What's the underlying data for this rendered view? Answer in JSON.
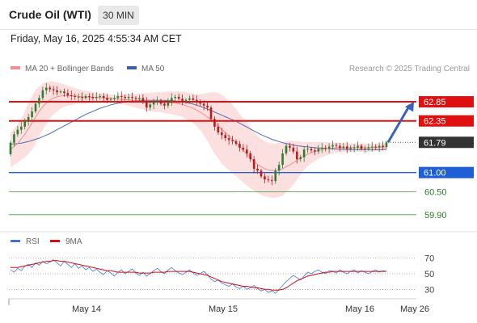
{
  "header": {
    "title": "Crude Oil (WTI)",
    "timeframe": "30 MIN"
  },
  "datetime": "Friday, May 16, 2025 4:55:34 AM CET",
  "legend": {
    "bollinger": "MA 20 + Bollinger Bands",
    "ma50": "MA 50",
    "credit": "Research © 2025 Trading Central"
  },
  "indicator_legend": {
    "rsi": "RSI",
    "ma9": "9MA"
  },
  "colors": {
    "bull": "#2e7d32",
    "bear": "#b71c1c",
    "bollinger_fill": "#fcd9d9",
    "ma20": "#f09090",
    "ma50": "#4a6fb5",
    "resistance": "#e01010",
    "support": "#1f5fd6",
    "target": "#3a63b8",
    "last_price": "#333333"
  },
  "chart_data": [
    {
      "type": "candlestick",
      "title": "",
      "x_ticks": [
        "May 14",
        "May 15",
        "May 16",
        "May 26"
      ],
      "ylim": [
        59.6,
        63.4
      ],
      "levels": [
        {
          "value": 62.85,
          "label": "62.85",
          "kind": "resistance",
          "color": "#e01010"
        },
        {
          "value": 62.35,
          "label": "62.35",
          "kind": "resistance",
          "color": "#e01010"
        },
        {
          "value": 61.79,
          "label": "61.79",
          "kind": "last",
          "color": "#333333"
        },
        {
          "value": 61.0,
          "label": "61.00",
          "kind": "pivot",
          "color": "#1f5fd6"
        },
        {
          "value": 60.5,
          "label": "60.50",
          "kind": "support",
          "color": "#3a9a3a"
        },
        {
          "value": 59.9,
          "label": "59.90",
          "kind": "support",
          "color": "#3a9a3a"
        }
      ],
      "close": [
        61.78,
        62.0,
        62.12,
        62.2,
        62.35,
        62.45,
        62.6,
        62.8,
        62.95,
        63.15,
        63.22,
        63.18,
        63.15,
        63.1,
        63.12,
        63.08,
        63.02,
        63.0,
        62.98,
        62.98,
        62.95,
        63.0,
        62.98,
        62.95,
        62.98,
        63.0,
        62.95,
        62.9,
        62.92,
        62.95,
        63.0,
        62.98,
        62.95,
        62.98,
        62.95,
        62.92,
        62.95,
        62.85,
        62.7,
        62.78,
        62.85,
        62.88,
        62.8,
        62.75,
        62.85,
        62.95,
        62.98,
        62.93,
        62.85,
        62.9,
        62.94,
        62.9,
        62.85,
        62.8,
        62.75,
        62.7,
        62.4,
        62.2,
        62.05,
        61.98,
        61.9,
        61.85,
        61.82,
        61.75,
        61.65,
        61.6,
        61.5,
        61.35,
        61.1,
        61.05,
        60.9,
        60.82,
        60.8,
        60.78,
        61.05,
        61.2,
        61.5,
        61.7,
        61.65,
        61.55,
        61.35,
        61.4,
        61.6,
        61.62,
        61.58,
        61.55,
        61.62,
        61.65,
        61.63,
        61.68,
        61.72,
        61.7,
        61.65,
        61.68,
        61.62,
        61.65,
        61.66,
        61.7,
        61.62,
        61.63,
        61.66,
        61.68,
        61.66,
        61.7,
        61.67,
        61.79
      ],
      "ma20": [
        61.6,
        61.68,
        61.76,
        61.88,
        62.0,
        62.15,
        62.3,
        62.45,
        62.6,
        62.72,
        62.82,
        62.9,
        62.95,
        62.98,
        63.0,
        63.01,
        63.01,
        63.0,
        63.0,
        62.99,
        62.98,
        62.97,
        62.97,
        62.96,
        62.96,
        62.96,
        62.95,
        62.95,
        62.94,
        62.93,
        62.92,
        62.91,
        62.91,
        62.9,
        62.89,
        62.88,
        62.87,
        62.86,
        62.85,
        62.84,
        62.84,
        62.84,
        62.84,
        62.83,
        62.83,
        62.82,
        62.81,
        62.8,
        62.78,
        62.75,
        62.72,
        62.68,
        62.63,
        62.58,
        62.52,
        62.45,
        62.38,
        62.3,
        62.22,
        62.13,
        62.05,
        61.96,
        61.87,
        61.78,
        61.68,
        61.58,
        61.48,
        61.38,
        61.29,
        61.21,
        61.15,
        61.1,
        61.07,
        61.05,
        61.05,
        61.07,
        61.1,
        61.15,
        61.2,
        61.26,
        61.32,
        61.38,
        61.43,
        61.48,
        61.52,
        61.55,
        61.58,
        61.6,
        61.62,
        61.63,
        61.64,
        61.65,
        61.65,
        61.65,
        61.65,
        61.65,
        61.65,
        61.65,
        61.65,
        61.65,
        61.65,
        61.65,
        61.66,
        61.66,
        61.66,
        61.67
      ],
      "bb_upper": [
        62.05,
        62.15,
        62.25,
        62.4,
        62.6,
        62.82,
        63.0,
        63.15,
        63.25,
        63.32,
        63.36,
        63.38,
        63.38,
        63.36,
        63.33,
        63.3,
        63.27,
        63.24,
        63.21,
        63.18,
        63.16,
        63.14,
        63.12,
        63.1,
        63.08,
        63.07,
        63.06,
        63.05,
        63.04,
        63.04,
        63.04,
        63.04,
        63.05,
        63.05,
        63.06,
        63.06,
        63.07,
        63.07,
        63.08,
        63.08,
        63.09,
        63.1,
        63.1,
        63.11,
        63.12,
        63.12,
        63.12,
        63.12,
        63.11,
        63.1,
        63.08,
        63.06,
        63.05,
        63.05,
        63.06,
        63.08,
        63.1,
        63.1,
        63.08,
        63.03,
        62.96,
        62.87,
        62.77,
        62.66,
        62.54,
        62.42,
        62.3,
        62.18,
        62.06,
        61.96,
        61.88,
        61.82,
        61.78,
        61.76,
        61.76,
        61.78,
        61.8,
        61.82,
        61.83,
        61.83,
        61.82,
        61.81,
        61.8,
        61.8,
        61.8,
        61.8,
        61.8,
        61.8,
        61.8,
        61.79,
        61.78,
        61.78,
        61.77,
        61.77,
        61.76,
        61.76,
        61.76,
        61.76,
        61.76,
        61.76,
        61.76,
        61.76,
        61.76,
        61.76,
        61.76,
        61.78
      ],
      "bb_lower": [
        61.15,
        61.2,
        61.26,
        61.33,
        61.4,
        61.48,
        61.6,
        61.75,
        61.95,
        62.12,
        62.28,
        62.42,
        62.52,
        62.6,
        62.67,
        62.72,
        62.75,
        62.76,
        62.79,
        62.8,
        62.8,
        62.8,
        62.82,
        62.82,
        62.84,
        62.85,
        62.84,
        62.85,
        62.84,
        62.82,
        62.8,
        62.78,
        62.77,
        62.75,
        62.72,
        62.7,
        62.67,
        62.65,
        62.62,
        62.6,
        62.59,
        62.58,
        62.58,
        62.55,
        62.54,
        62.52,
        62.5,
        62.48,
        62.45,
        62.4,
        62.36,
        62.3,
        62.21,
        62.11,
        61.98,
        61.82,
        61.66,
        61.5,
        61.36,
        61.23,
        61.14,
        61.05,
        60.97,
        60.9,
        60.82,
        60.74,
        60.66,
        60.58,
        60.52,
        60.46,
        60.42,
        60.38,
        60.36,
        60.34,
        60.34,
        60.36,
        60.4,
        60.48,
        60.57,
        60.69,
        60.82,
        60.95,
        61.06,
        61.16,
        61.24,
        61.3,
        61.36,
        61.4,
        61.44,
        61.47,
        61.5,
        61.52,
        61.53,
        61.53,
        61.54,
        61.54,
        61.54,
        61.54,
        61.54,
        61.54,
        61.54,
        61.54,
        61.56,
        61.56,
        61.56,
        61.56
      ],
      "ma50": [
        61.75,
        61.75,
        61.76,
        61.77,
        61.79,
        61.81,
        61.84,
        61.87,
        61.9,
        61.94,
        61.98,
        62.02,
        62.07,
        62.12,
        62.17,
        62.22,
        62.27,
        62.32,
        62.37,
        62.42,
        62.47,
        62.52,
        62.56,
        62.6,
        62.64,
        62.68,
        62.71,
        62.74,
        62.77,
        62.79,
        62.81,
        62.83,
        62.85,
        62.86,
        62.87,
        62.88,
        62.89,
        62.89,
        62.89,
        62.89,
        62.89,
        62.89,
        62.89,
        62.89,
        62.88,
        62.88,
        62.87,
        62.86,
        62.85,
        62.83,
        62.81,
        62.79,
        62.76,
        62.73,
        62.7,
        62.66,
        62.62,
        62.58,
        62.54,
        62.5,
        62.46,
        62.42,
        62.38,
        62.34,
        62.29,
        62.24,
        62.19,
        62.14,
        62.09,
        62.04,
        61.99,
        61.95,
        61.91,
        61.87,
        61.84,
        61.81,
        61.78,
        61.76,
        61.74,
        61.72,
        61.7,
        61.69,
        61.68,
        61.67,
        61.66,
        61.65,
        61.64,
        61.64,
        61.63,
        61.62,
        61.62,
        61.61,
        61.61,
        61.61,
        61.6,
        61.6,
        61.6,
        61.6,
        61.6,
        61.6,
        61.6,
        61.6,
        61.6,
        61.6,
        61.6,
        61.61
      ],
      "target": {
        "from": 61.79,
        "to": 62.85
      }
    },
    {
      "type": "line",
      "title": "",
      "series_names": [
        "RSI",
        "9MA"
      ],
      "ylim": [
        20,
        78
      ],
      "y_ticks": [
        70,
        50,
        30
      ],
      "rsi": [
        55,
        52,
        57,
        54,
        60,
        62,
        58,
        64,
        61,
        66,
        63,
        65,
        68,
        64,
        60,
        66,
        62,
        58,
        63,
        57,
        60,
        55,
        58,
        53,
        56,
        52,
        49,
        54,
        51,
        47,
        52,
        55,
        50,
        53,
        56,
        51,
        48,
        52,
        47,
        50,
        54,
        57,
        53,
        50,
        55,
        58,
        54,
        51,
        49,
        52,
        55,
        51,
        48,
        50,
        53,
        49,
        43,
        40,
        42,
        38,
        36,
        34,
        37,
        33,
        31,
        34,
        30,
        32,
        35,
        31,
        28,
        30,
        26,
        28,
        25,
        30,
        35,
        40,
        44,
        48,
        45,
        42,
        47,
        52,
        50,
        53,
        55,
        52,
        50,
        54,
        53,
        51,
        55,
        52,
        50,
        53,
        55,
        51,
        54,
        52,
        50,
        53,
        55,
        52,
        54,
        53
      ],
      "ma9": [
        58,
        58,
        58,
        59,
        60,
        61,
        62,
        63,
        64,
        65,
        66,
        66,
        67,
        67,
        66,
        66,
        65,
        64,
        63,
        62,
        61,
        60,
        59,
        58,
        57,
        56,
        55,
        54,
        54,
        53,
        52,
        52,
        52,
        52,
        52,
        52,
        51,
        51,
        51,
        51,
        52,
        52,
        52,
        52,
        53,
        53,
        53,
        53,
        53,
        53,
        53,
        52,
        51,
        50,
        49,
        48,
        46,
        44,
        42,
        40,
        39,
        38,
        37,
        36,
        35,
        34,
        34,
        33,
        32,
        32,
        31,
        30,
        30,
        29,
        29,
        29,
        30,
        32,
        35,
        38,
        41,
        43,
        45,
        47,
        48,
        49,
        50,
        51,
        52,
        52,
        53,
        53,
        53,
        53,
        53,
        53,
        53,
        53,
        53,
        53,
        53,
        53,
        53,
        53,
        53,
        53
      ]
    }
  ]
}
